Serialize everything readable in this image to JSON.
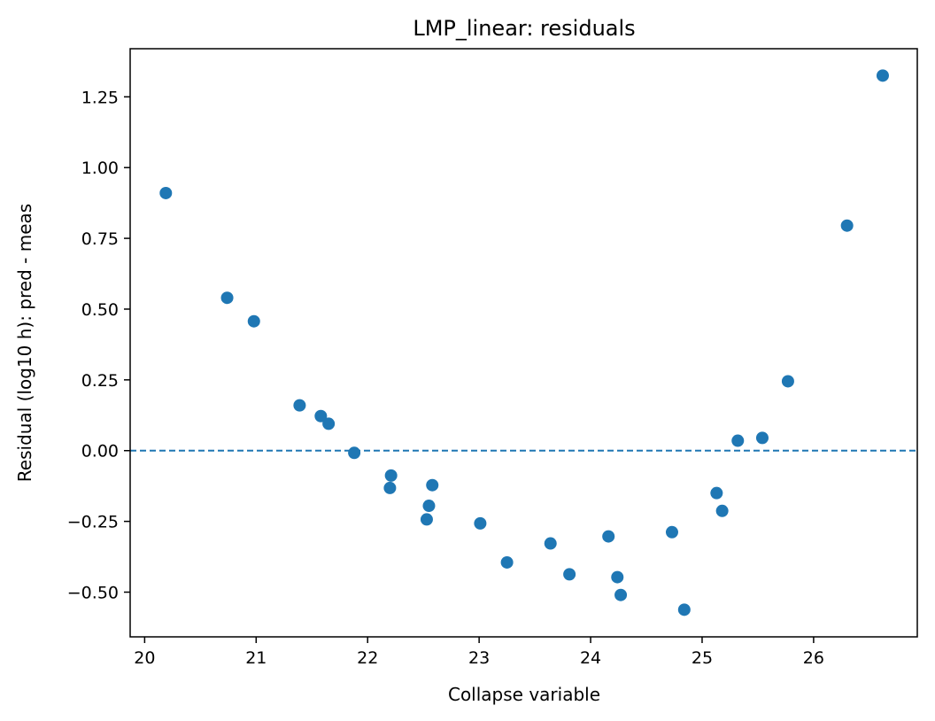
{
  "chart_data": {
    "type": "scatter",
    "title": "LMP_linear: residuals",
    "xlabel": "Collapse variable",
    "ylabel": "Residual (log10 h): pred - meas",
    "xlim": [
      19.87,
      26.93
    ],
    "ylim": [
      -0.658,
      1.42
    ],
    "xticks": [
      20,
      21,
      22,
      23,
      24,
      25,
      26
    ],
    "xtick_labels": [
      "20",
      "21",
      "22",
      "23",
      "24",
      "25",
      "26"
    ],
    "yticks": [
      -0.5,
      -0.25,
      0.0,
      0.25,
      0.5,
      0.75,
      1.0,
      1.25
    ],
    "ytick_labels": [
      "−0.50",
      "−0.25",
      "0.00",
      "0.25",
      "0.50",
      "0.75",
      "1.00",
      "1.25"
    ],
    "reference_line": {
      "y": 0.0,
      "style": "dashed",
      "color": "#1f77b4"
    },
    "grid": false,
    "marker_color": "#1f77b4",
    "points": [
      {
        "x": 20.19,
        "y": 0.91
      },
      {
        "x": 20.74,
        "y": 0.54
      },
      {
        "x": 20.98,
        "y": 0.457
      },
      {
        "x": 21.39,
        "y": 0.16
      },
      {
        "x": 21.58,
        "y": 0.122
      },
      {
        "x": 21.65,
        "y": 0.095
      },
      {
        "x": 21.88,
        "y": -0.008
      },
      {
        "x": 22.21,
        "y": -0.088
      },
      {
        "x": 22.2,
        "y": -0.132
      },
      {
        "x": 22.58,
        "y": -0.122
      },
      {
        "x": 22.55,
        "y": -0.195
      },
      {
        "x": 22.53,
        "y": -0.243
      },
      {
        "x": 23.01,
        "y": -0.257
      },
      {
        "x": 23.25,
        "y": -0.395
      },
      {
        "x": 23.64,
        "y": -0.328
      },
      {
        "x": 23.81,
        "y": -0.437
      },
      {
        "x": 24.16,
        "y": -0.303
      },
      {
        "x": 24.24,
        "y": -0.447
      },
      {
        "x": 24.27,
        "y": -0.51
      },
      {
        "x": 24.73,
        "y": -0.288
      },
      {
        "x": 24.84,
        "y": -0.562
      },
      {
        "x": 25.13,
        "y": -0.15
      },
      {
        "x": 25.18,
        "y": -0.213
      },
      {
        "x": 25.32,
        "y": 0.035
      },
      {
        "x": 25.54,
        "y": 0.045
      },
      {
        "x": 25.77,
        "y": 0.245
      },
      {
        "x": 26.3,
        "y": 0.795
      },
      {
        "x": 26.62,
        "y": 1.325
      }
    ]
  }
}
